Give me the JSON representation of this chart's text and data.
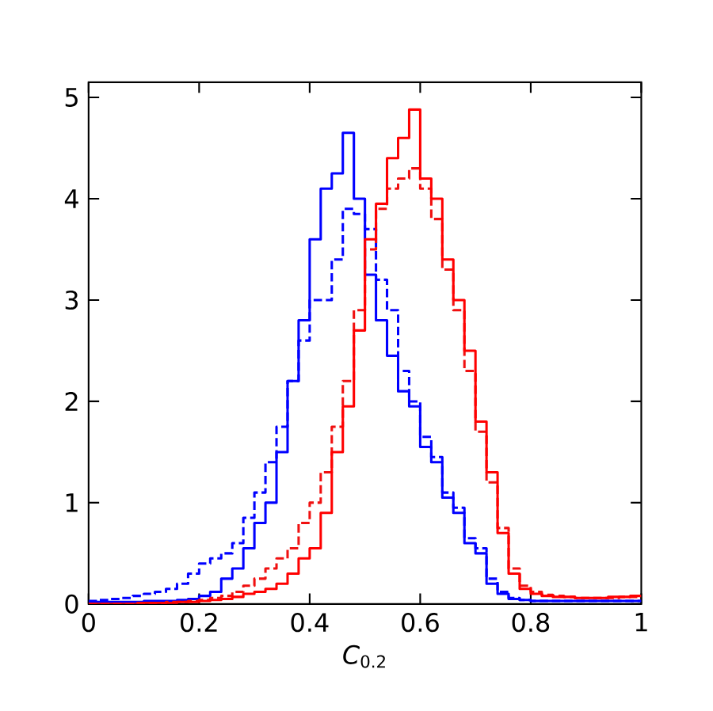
{
  "chart_data": {
    "type": "histogram",
    "xlabel": "*C*$_{0.2}$",
    "bins": [
      0,
      0.02,
      0.04,
      0.06,
      0.08,
      0.1,
      0.12,
      0.14,
      0.16,
      0.18,
      0.2,
      0.22,
      0.24,
      0.26,
      0.28,
      0.3,
      0.32,
      0.34,
      0.36,
      0.38,
      0.4,
      0.42,
      0.44,
      0.46,
      0.48,
      0.5,
      0.52,
      0.54,
      0.56,
      0.58,
      0.6,
      0.62,
      0.64,
      0.66,
      0.68,
      0.7,
      0.72,
      0.74,
      0.76,
      0.78,
      0.8,
      0.82,
      0.84,
      0.86,
      0.88,
      0.9,
      0.92,
      0.94,
      0.96,
      0.98,
      1.0
    ],
    "series": [
      {
        "color": "#0000ff",
        "line_style": "solid",
        "values": [
          0.02,
          0.02,
          0.02,
          0.02,
          0.02,
          0.03,
          0.03,
          0.03,
          0.04,
          0.05,
          0.08,
          0.12,
          0.25,
          0.35,
          0.55,
          0.8,
          1.0,
          1.5,
          2.2,
          2.8,
          3.6,
          4.1,
          4.25,
          4.65,
          4.0,
          3.25,
          2.8,
          2.45,
          2.1,
          1.95,
          1.55,
          1.4,
          1.05,
          0.9,
          0.6,
          0.5,
          0.2,
          0.1,
          0.05,
          0.04,
          0.03,
          0.03,
          0.03,
          0.03,
          0.03,
          0.03,
          0.03,
          0.03,
          0.03,
          0.03
        ]
      },
      {
        "color": "#0000ff",
        "line_style": "dashed",
        "values": [
          0.03,
          0.04,
          0.05,
          0.06,
          0.08,
          0.1,
          0.12,
          0.15,
          0.2,
          0.3,
          0.4,
          0.45,
          0.5,
          0.6,
          0.85,
          1.1,
          1.4,
          1.75,
          2.2,
          2.6,
          3.0,
          3.0,
          3.4,
          3.9,
          3.85,
          3.7,
          3.2,
          2.9,
          2.3,
          2.0,
          1.65,
          1.45,
          1.1,
          0.95,
          0.65,
          0.55,
          0.25,
          0.12,
          0.06,
          0.04,
          0.03,
          0.03,
          0.03,
          0.03,
          0.03,
          0.03,
          0.03,
          0.03,
          0.03,
          0.03
        ]
      },
      {
        "color": "#f01010",
        "line_style": "dashed",
        "values": [
          0,
          0,
          0,
          0,
          0.01,
          0.01,
          0.01,
          0.02,
          0.02,
          0.03,
          0.04,
          0.06,
          0.08,
          0.12,
          0.18,
          0.25,
          0.35,
          0.45,
          0.55,
          0.8,
          1.0,
          1.3,
          1.75,
          2.2,
          2.9,
          3.5,
          3.9,
          4.1,
          4.2,
          4.3,
          4.1,
          3.8,
          3.3,
          2.9,
          2.3,
          1.7,
          1.2,
          0.75,
          0.35,
          0.18,
          0.12,
          0.09,
          0.08,
          0.07,
          0.06,
          0.06,
          0.06,
          0.06,
          0.07,
          0.07
        ]
      },
      {
        "color": "#ff0000",
        "line_style": "solid",
        "values": [
          0,
          0,
          0,
          0,
          0,
          0.01,
          0.01,
          0.01,
          0.02,
          0.02,
          0.03,
          0.04,
          0.05,
          0.07,
          0.1,
          0.12,
          0.15,
          0.2,
          0.3,
          0.45,
          0.55,
          0.9,
          1.5,
          1.95,
          2.7,
          3.6,
          3.95,
          4.4,
          4.6,
          4.88,
          4.2,
          4.0,
          3.4,
          3.0,
          2.5,
          1.8,
          1.3,
          0.7,
          0.3,
          0.15,
          0.1,
          0.08,
          0.07,
          0.07,
          0.06,
          0.06,
          0.06,
          0.07,
          0.07,
          0.08
        ]
      }
    ],
    "xlim": [
      0,
      1
    ],
    "ylim": [
      0,
      5.15
    ],
    "xticks": [
      0,
      0.2,
      0.4,
      0.6,
      0.8,
      1
    ],
    "yticks": [
      0,
      1,
      2,
      3,
      4,
      5
    ]
  }
}
